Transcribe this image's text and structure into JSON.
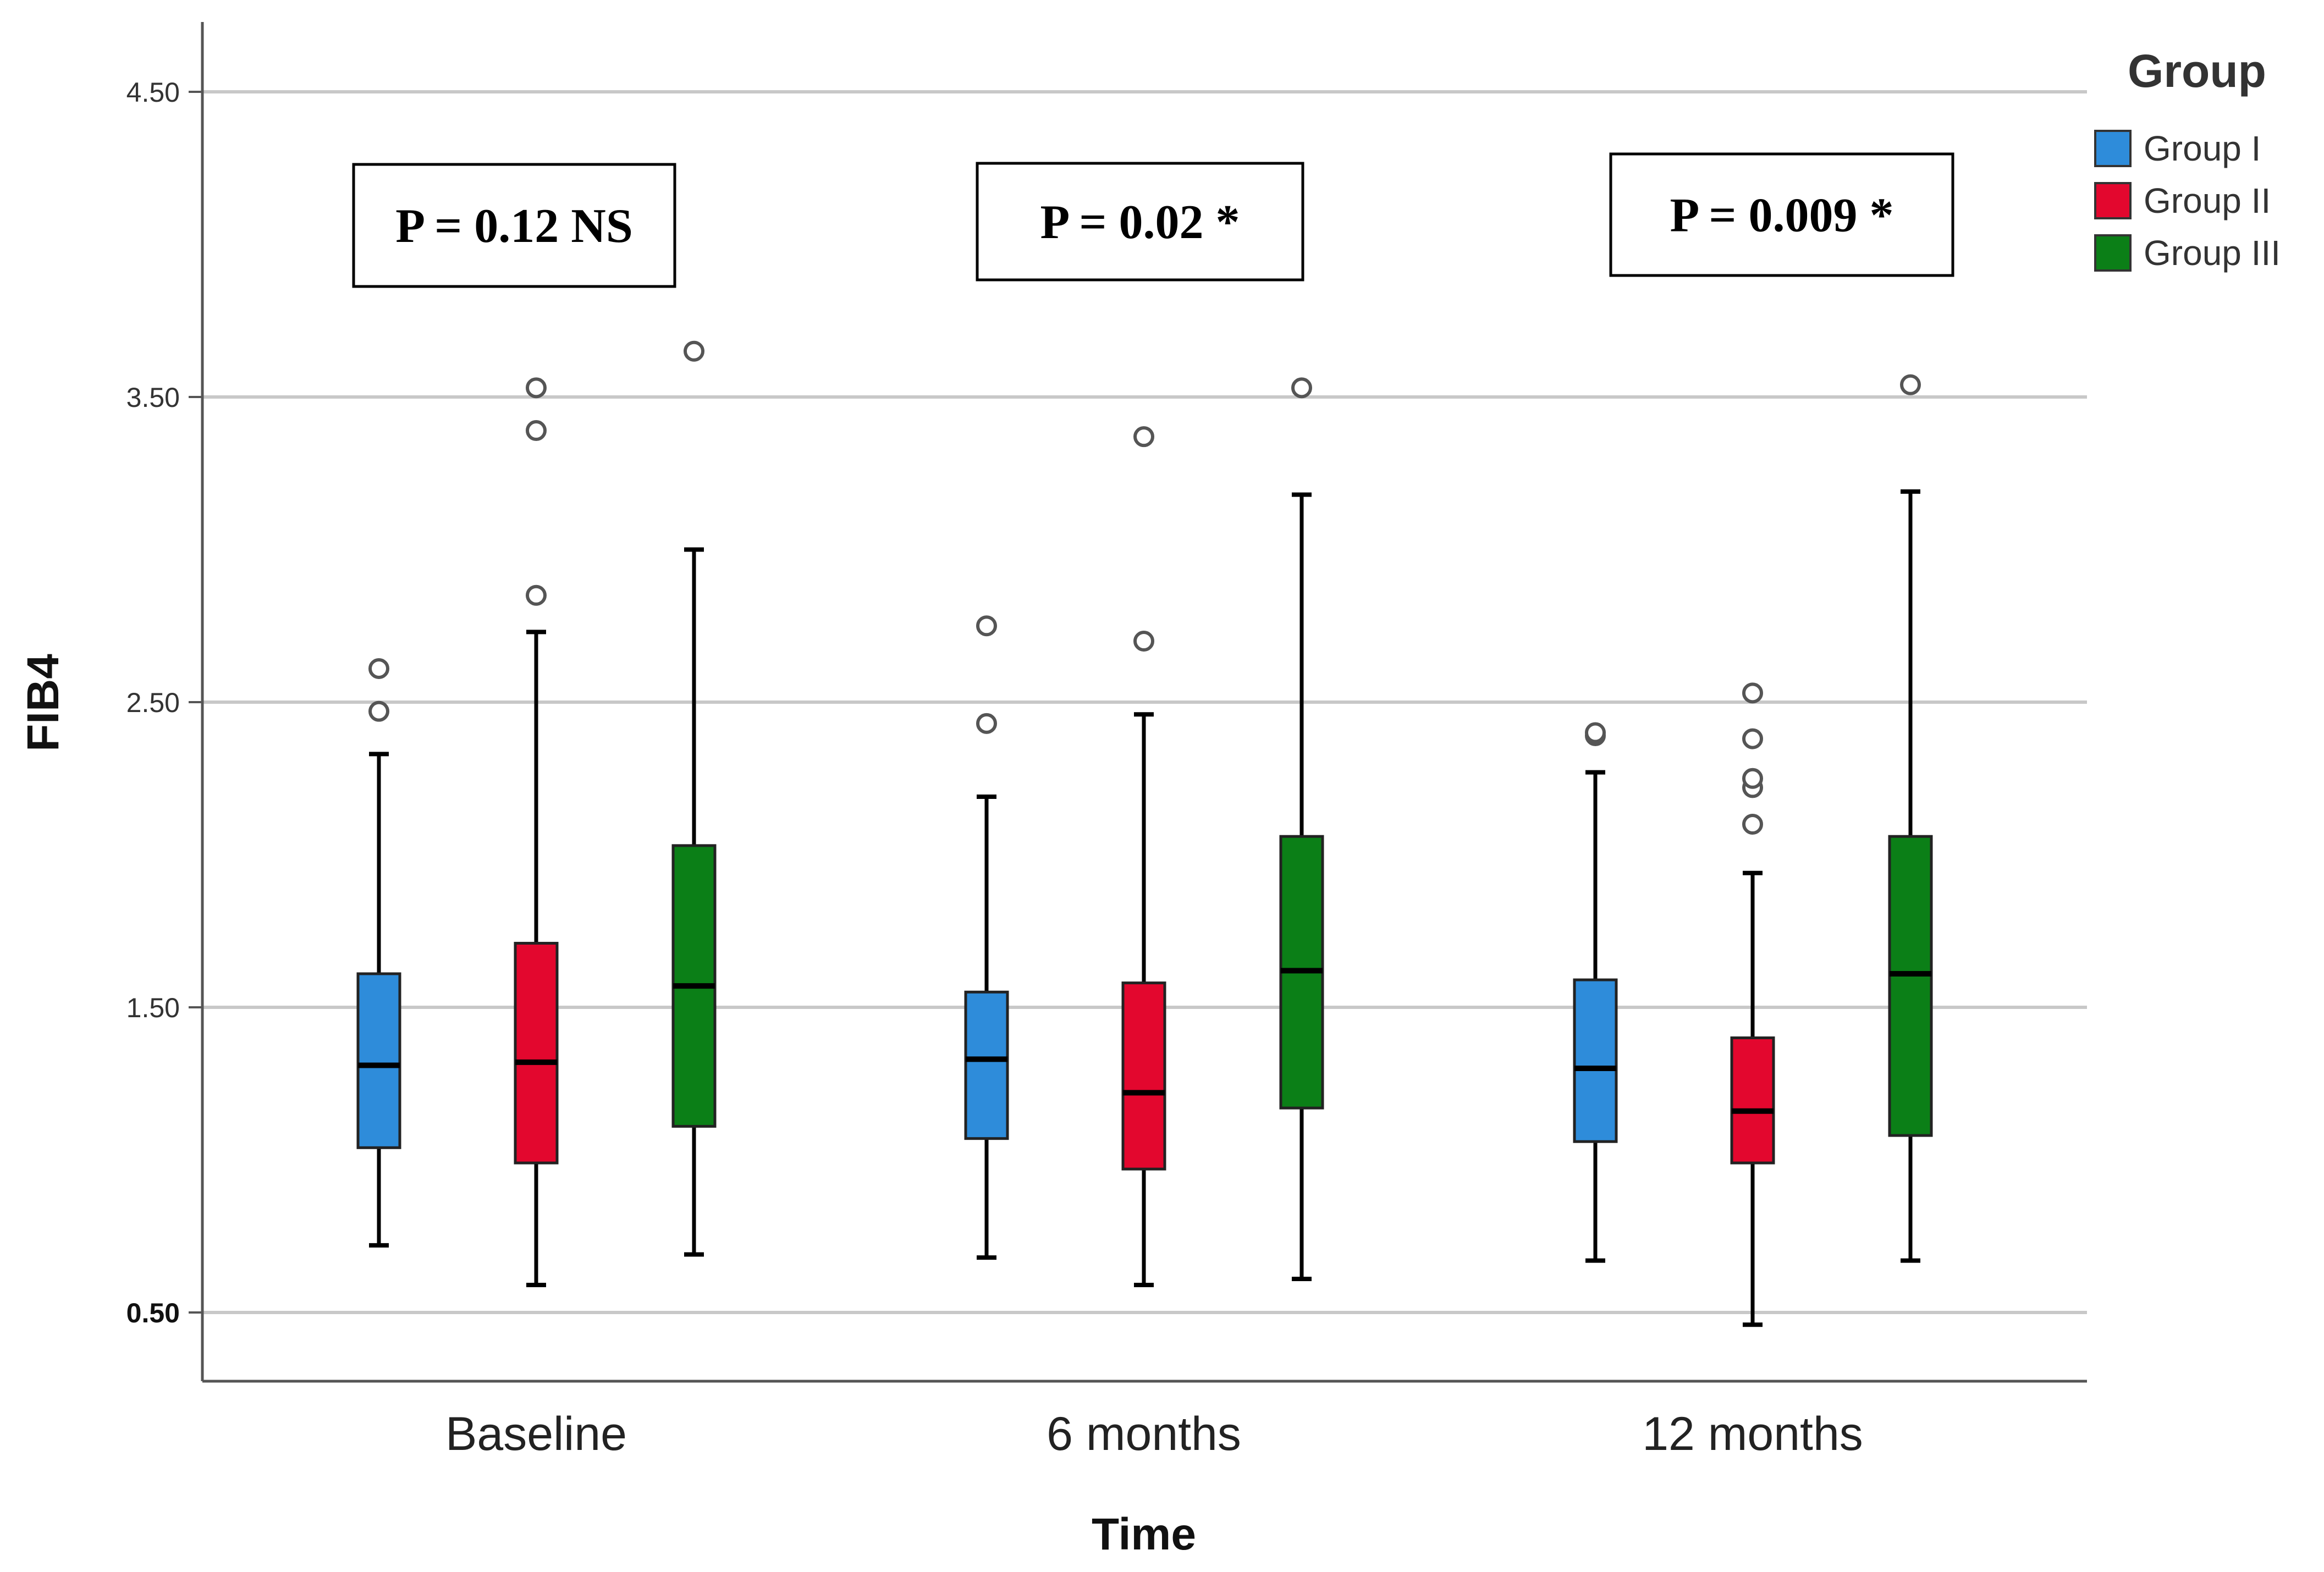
{
  "chart_data": {
    "type": "boxplot",
    "xlabel": "Time",
    "ylabel": "FIB4",
    "ylim": [
      0.27,
      4.73
    ],
    "yticks": [
      0.5,
      1.5,
      2.5,
      3.5,
      4.5
    ],
    "ytick_labels": [
      "0.50",
      "1.50",
      "2.50",
      "3.50",
      "4.50"
    ],
    "categories": [
      "Baseline",
      "6 months",
      "12 months"
    ],
    "legend": {
      "title": "Group",
      "position": "top-right"
    },
    "series": [
      {
        "name": "Group I",
        "color": "#2E8CDA",
        "boxes": [
          {
            "min": 0.72,
            "q1": 1.04,
            "median": 1.31,
            "q3": 1.61,
            "max": 2.33,
            "outliers": [
              2.47,
              2.61
            ]
          },
          {
            "min": 0.68,
            "q1": 1.07,
            "median": 1.33,
            "q3": 1.55,
            "max": 2.19,
            "outliers": [
              2.43,
              2.75
            ]
          },
          {
            "min": 0.67,
            "q1": 1.06,
            "median": 1.3,
            "q3": 1.59,
            "max": 2.27,
            "outliers": [
              2.39,
              2.4
            ]
          }
        ]
      },
      {
        "name": "Group II",
        "color": "#E3072E",
        "boxes": [
          {
            "min": 0.59,
            "q1": 0.99,
            "median": 1.32,
            "q3": 1.71,
            "max": 2.73,
            "outliers": [
              2.85,
              3.39,
              3.53
            ]
          },
          {
            "min": 0.59,
            "q1": 0.97,
            "median": 1.22,
            "q3": 1.58,
            "max": 2.46,
            "outliers": [
              2.7,
              3.37
            ]
          },
          {
            "min": 0.46,
            "q1": 0.99,
            "median": 1.16,
            "q3": 1.4,
            "max": 1.94,
            "outliers": [
              2.1,
              2.22,
              2.25,
              2.38,
              2.53
            ]
          }
        ]
      },
      {
        "name": "Group III",
        "color": "#0B7F17",
        "boxes": [
          {
            "min": 0.69,
            "q1": 1.11,
            "median": 1.57,
            "q3": 2.03,
            "max": 3.0,
            "outliers": [
              3.65
            ]
          },
          {
            "min": 0.61,
            "q1": 1.17,
            "median": 1.62,
            "q3": 2.06,
            "max": 3.18,
            "outliers": [
              3.53
            ]
          },
          {
            "min": 0.67,
            "q1": 1.08,
            "median": 1.61,
            "q3": 2.06,
            "max": 3.19,
            "outliers": [
              3.54
            ]
          }
        ]
      }
    ],
    "annotations": [
      "P = 0.12 NS",
      "P = 0.02 *",
      "P = 0.009 *"
    ]
  }
}
